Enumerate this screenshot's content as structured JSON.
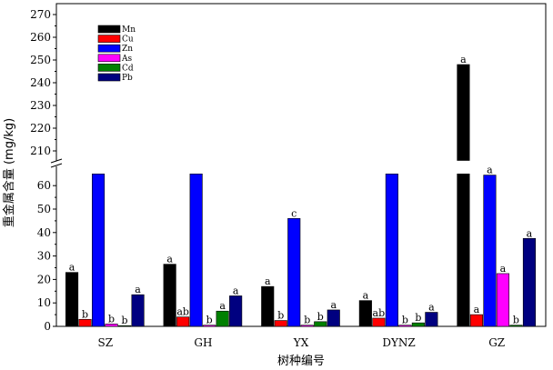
{
  "chart_data": {
    "type": "bar",
    "xlabel": "树种编号",
    "ylabel": "重金属含量 (mg/kg)",
    "categories": [
      "SZ",
      "GH",
      "YX",
      "DYNZ",
      "GZ"
    ],
    "axis_break": {
      "lower_range": [
        0,
        65
      ],
      "upper_range": [
        205,
        275
      ]
    },
    "ylim": [
      0,
      270
    ],
    "yticks": [
      0,
      10,
      20,
      30,
      40,
      50,
      60,
      210,
      220,
      230,
      240,
      250,
      260,
      270
    ],
    "legend_position": "top-left",
    "series": [
      {
        "name": "Mn",
        "color": "#000000",
        "values": [
          23,
          26.5,
          17,
          11,
          248
        ],
        "labels": [
          "a",
          "a",
          "a",
          "a",
          "a"
        ]
      },
      {
        "name": "Cu",
        "color": "#ff0000",
        "values": [
          3,
          4,
          2.5,
          3.5,
          5
        ],
        "labels": [
          "b",
          "ab",
          "b",
          "ab",
          "a"
        ]
      },
      {
        "name": "Zn",
        "color": "#0000ff",
        "values": [
          null,
          null,
          46,
          null,
          64.5
        ],
        "labels": [
          "",
          "",
          "c",
          "",
          "a"
        ]
      },
      {
        "name": "As",
        "color": "#ff00ff",
        "values": [
          1,
          0.5,
          0.5,
          0.5,
          22.5
        ],
        "labels": [
          "b",
          "b",
          "b",
          "b",
          "a"
        ]
      },
      {
        "name": "Cd",
        "color": "#008000",
        "values": [
          0.3,
          6.5,
          2,
          1.5,
          0.5
        ],
        "labels": [
          "b",
          "a",
          "b",
          "b",
          "b"
        ]
      },
      {
        "name": "Pb",
        "color": "#000080",
        "values": [
          13.5,
          13,
          7,
          6,
          37.5
        ],
        "labels": [
          "a",
          "a",
          "a",
          "a",
          "a"
        ]
      }
    ]
  }
}
